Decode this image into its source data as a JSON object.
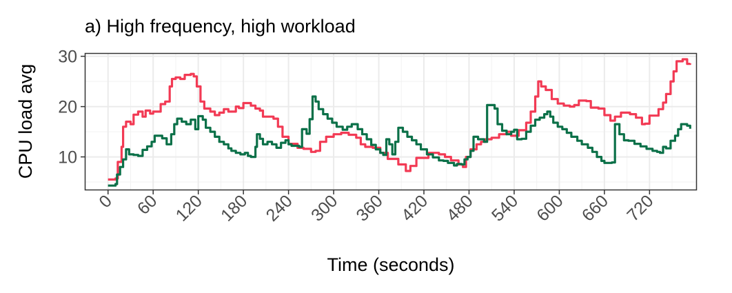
{
  "chart_data": {
    "type": "line",
    "title": "a) High frequency, high workload",
    "xlabel": "Time (seconds)",
    "ylabel": "CPU load avg",
    "xlim": [
      -30,
      782
    ],
    "ylim": [
      3.5,
      30.5
    ],
    "x_ticks": [
      0,
      60,
      120,
      180,
      240,
      300,
      360,
      420,
      480,
      540,
      600,
      660,
      720
    ],
    "y_ticks": [
      10,
      20,
      30
    ],
    "grid": true,
    "legend": "none",
    "series": [
      {
        "color": "#f23a54",
        "points": [
          [
            0,
            5.5
          ],
          [
            10,
            5.7
          ],
          [
            13,
            9
          ],
          [
            18,
            12
          ],
          [
            20,
            16
          ],
          [
            24,
            17
          ],
          [
            30,
            16.5
          ],
          [
            34,
            18.4
          ],
          [
            40,
            19
          ],
          [
            46,
            18
          ],
          [
            50,
            19.2
          ],
          [
            56,
            18.6
          ],
          [
            60,
            19
          ],
          [
            70,
            20.5
          ],
          [
            76,
            21
          ],
          [
            82,
            24
          ],
          [
            85,
            25.5
          ],
          [
            90,
            25.8
          ],
          [
            96,
            25.5
          ],
          [
            102,
            26.3
          ],
          [
            110,
            26.5
          ],
          [
            114,
            26
          ],
          [
            118,
            24
          ],
          [
            123,
            21
          ],
          [
            128,
            19.6
          ],
          [
            136,
            19
          ],
          [
            142,
            18.3
          ],
          [
            148,
            18.8
          ],
          [
            154,
            19.5
          ],
          [
            160,
            19
          ],
          [
            170,
            20
          ],
          [
            174,
            19.7
          ],
          [
            180,
            20.7
          ],
          [
            190,
            20.2
          ],
          [
            196,
            19.6
          ],
          [
            202,
            19.2
          ],
          [
            206,
            18
          ],
          [
            220,
            17.6
          ],
          [
            226,
            16
          ],
          [
            232,
            14
          ],
          [
            240,
            12.6
          ],
          [
            252,
            11.8
          ],
          [
            260,
            11.6
          ],
          [
            270,
            11
          ],
          [
            276,
            11.2
          ],
          [
            282,
            13
          ],
          [
            290,
            14
          ],
          [
            300,
            14.5
          ],
          [
            310,
            14.8
          ],
          [
            320,
            14.4
          ],
          [
            330,
            13.8
          ],
          [
            336,
            12.5
          ],
          [
            342,
            12
          ],
          [
            352,
            11.8
          ],
          [
            362,
            10.8
          ],
          [
            372,
            9.6
          ],
          [
            386,
            8.5
          ],
          [
            396,
            7.2
          ],
          [
            402,
            8.2
          ],
          [
            410,
            9.8
          ],
          [
            426,
            10.8
          ],
          [
            432,
            10.8
          ],
          [
            440,
            10.5
          ],
          [
            448,
            10
          ],
          [
            456,
            9.3
          ],
          [
            466,
            8.5
          ],
          [
            472,
            8
          ],
          [
            476,
            10
          ],
          [
            482,
            11.5
          ],
          [
            490,
            12.5
          ],
          [
            496,
            13
          ],
          [
            502,
            13.5
          ],
          [
            510,
            13.8
          ],
          [
            520,
            14.5
          ],
          [
            530,
            15
          ],
          [
            536,
            14.2
          ],
          [
            546,
            15.3
          ],
          [
            556,
            16.8
          ],
          [
            562,
            19
          ],
          [
            568,
            22
          ],
          [
            572,
            25
          ],
          [
            576,
            24
          ],
          [
            582,
            23.3
          ],
          [
            590,
            21.5
          ],
          [
            598,
            20.6
          ],
          [
            606,
            20.2
          ],
          [
            614,
            20
          ],
          [
            620,
            20.3
          ],
          [
            626,
            21.2
          ],
          [
            636,
            21.1
          ],
          [
            642,
            19.8
          ],
          [
            652,
            19.6
          ],
          [
            660,
            18.3
          ],
          [
            668,
            17.2
          ],
          [
            674,
            18
          ],
          [
            682,
            18.8
          ],
          [
            694,
            18.5
          ],
          [
            702,
            17.8
          ],
          [
            710,
            16.5
          ],
          [
            714,
            16.6
          ],
          [
            720,
            18.2
          ],
          [
            726,
            18.2
          ],
          [
            732,
            19.5
          ],
          [
            738,
            20.8
          ],
          [
            742,
            22.5
          ],
          [
            748,
            25
          ],
          [
            752,
            27
          ],
          [
            756,
            29
          ],
          [
            764,
            29.4
          ],
          [
            770,
            28.5
          ],
          [
            774,
            28.6
          ]
        ]
      },
      {
        "color": "#0b7048",
        "points": [
          [
            0,
            4.3
          ],
          [
            10,
            4.6
          ],
          [
            12,
            6.5
          ],
          [
            16,
            8
          ],
          [
            20,
            9.5
          ],
          [
            24,
            11.5
          ],
          [
            28,
            10.5
          ],
          [
            34,
            10.4
          ],
          [
            40,
            10.2
          ],
          [
            46,
            11.4
          ],
          [
            52,
            12.1
          ],
          [
            58,
            13
          ],
          [
            62,
            14.2
          ],
          [
            72,
            13.7
          ],
          [
            78,
            12.5
          ],
          [
            84,
            14.5
          ],
          [
            88,
            16.5
          ],
          [
            92,
            17.6
          ],
          [
            98,
            17
          ],
          [
            104,
            16.5
          ],
          [
            110,
            17.4
          ],
          [
            116,
            15.5
          ],
          [
            120,
            18.1
          ],
          [
            126,
            17.4
          ],
          [
            130,
            15.8
          ],
          [
            136,
            15
          ],
          [
            142,
            14
          ],
          [
            148,
            13
          ],
          [
            154,
            12.5
          ],
          [
            160,
            11.7
          ],
          [
            164,
            11.2
          ],
          [
            170,
            10.8
          ],
          [
            176,
            10.5
          ],
          [
            182,
            10.8
          ],
          [
            186,
            10.2
          ],
          [
            190,
            10
          ],
          [
            196,
            12
          ],
          [
            198,
            14.5
          ],
          [
            202,
            13.6
          ],
          [
            206,
            12.5
          ],
          [
            212,
            13
          ],
          [
            218,
            12.5
          ],
          [
            224,
            11.8
          ],
          [
            230,
            12.8
          ],
          [
            236,
            13.3
          ],
          [
            240,
            12.5
          ],
          [
            244,
            12.2
          ],
          [
            254,
            12
          ],
          [
            258,
            15.5
          ],
          [
            264,
            14.6
          ],
          [
            268,
            17.5
          ],
          [
            272,
            22
          ],
          [
            276,
            21
          ],
          [
            280,
            19.5
          ],
          [
            286,
            18.5
          ],
          [
            292,
            17.6
          ],
          [
            298,
            16.8
          ],
          [
            304,
            16
          ],
          [
            312,
            15.4
          ],
          [
            318,
            16
          ],
          [
            324,
            16.5
          ],
          [
            332,
            15.5
          ],
          [
            338,
            14.5
          ],
          [
            344,
            13.5
          ],
          [
            350,
            12.4
          ],
          [
            356,
            11.5
          ],
          [
            362,
            10.8
          ],
          [
            366,
            10.4
          ],
          [
            370,
            13.5
          ],
          [
            374,
            12.5
          ],
          [
            378,
            10.5
          ],
          [
            382,
            13
          ],
          [
            386,
            15.8
          ],
          [
            392,
            15
          ],
          [
            398,
            14
          ],
          [
            404,
            13.3
          ],
          [
            410,
            12.5
          ],
          [
            416,
            11.5
          ],
          [
            424,
            10.5
          ],
          [
            432,
            9.9
          ],
          [
            440,
            9.3
          ],
          [
            446,
            9.2
          ],
          [
            452,
            8.8
          ],
          [
            460,
            8.3
          ],
          [
            464,
            8.6
          ],
          [
            470,
            8.5
          ],
          [
            474,
            9.5
          ],
          [
            478,
            10
          ],
          [
            482,
            11.2
          ],
          [
            486,
            14
          ],
          [
            492,
            13.5
          ],
          [
            500,
            13
          ],
          [
            504,
            20.3
          ],
          [
            514,
            19.6
          ],
          [
            518,
            16.5
          ],
          [
            524,
            15.2
          ],
          [
            530,
            14.5
          ],
          [
            536,
            15
          ],
          [
            540,
            15.4
          ],
          [
            544,
            13.5
          ],
          [
            550,
            13.6
          ],
          [
            556,
            15
          ],
          [
            562,
            16.2
          ],
          [
            568,
            17.4
          ],
          [
            574,
            17.8
          ],
          [
            580,
            18.5
          ],
          [
            584,
            19
          ],
          [
            588,
            18
          ],
          [
            592,
            16.8
          ],
          [
            598,
            16
          ],
          [
            604,
            15.5
          ],
          [
            610,
            14.8
          ],
          [
            616,
            14
          ],
          [
            624,
            13.2
          ],
          [
            630,
            12.5
          ],
          [
            638,
            11.8
          ],
          [
            644,
            11
          ],
          [
            650,
            10
          ],
          [
            656,
            9.2
          ],
          [
            660,
            8.8
          ],
          [
            670,
            8.9
          ],
          [
            674,
            16.5
          ],
          [
            680,
            14.5
          ],
          [
            686,
            13.3
          ],
          [
            692,
            13.2
          ],
          [
            700,
            12.6
          ],
          [
            708,
            12.1
          ],
          [
            716,
            11.6
          ],
          [
            724,
            11.2
          ],
          [
            730,
            11
          ],
          [
            734,
            10.8
          ],
          [
            738,
            12
          ],
          [
            742,
            11.7
          ],
          [
            748,
            13.2
          ],
          [
            754,
            14.2
          ],
          [
            758,
            15.5
          ],
          [
            762,
            16.5
          ],
          [
            770,
            16.2
          ],
          [
            774,
            15.6
          ]
        ]
      }
    ]
  }
}
